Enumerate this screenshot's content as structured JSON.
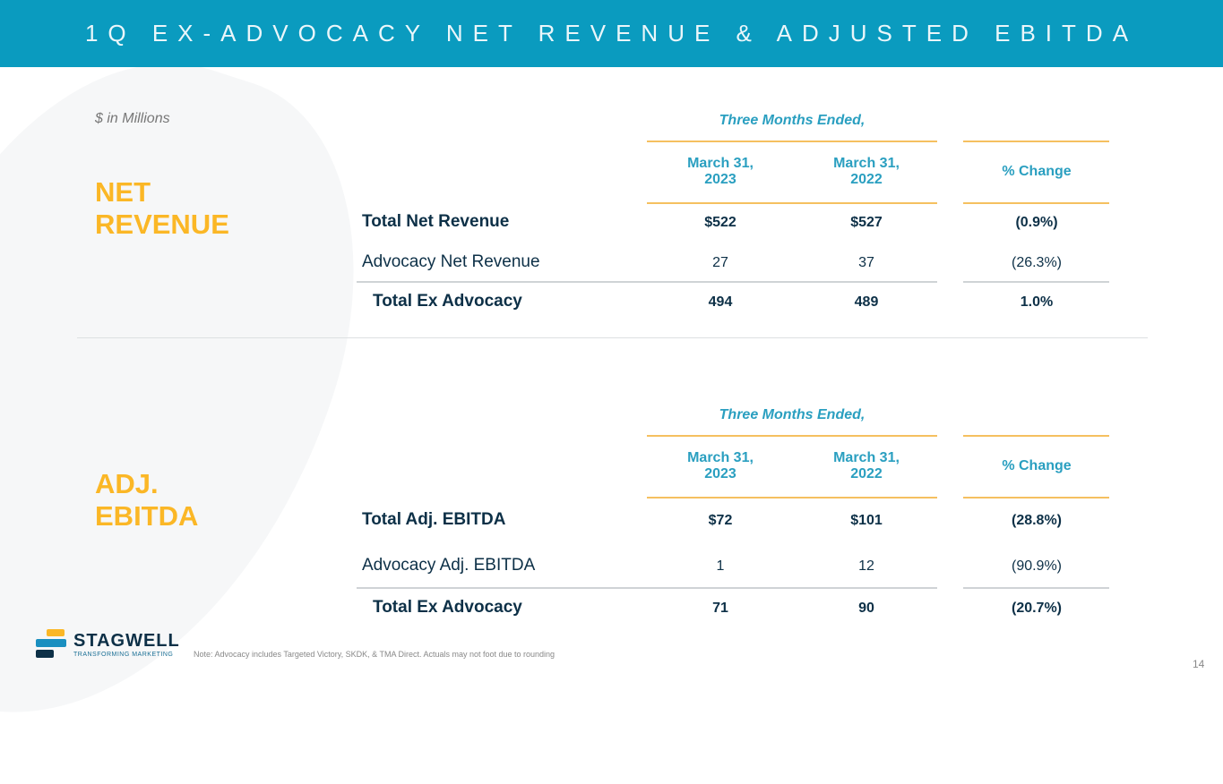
{
  "title": "1Q EX-ADVOCACY NET REVENUE & ADJUSTED EBITDA",
  "units": "$ in Millions",
  "colors": {
    "header": "#0a9bbf",
    "accent": "#fbb726",
    "navy": "#0d3047",
    "teal": "#2a9fc0"
  },
  "sections": [
    {
      "label_1": "NET",
      "label_2": "REVENUE",
      "period": "Three Months Ended,",
      "headers": [
        "March 31,\n2023",
        "March 31,\n2022",
        "% Change"
      ],
      "rows": [
        {
          "label": "Total Net Revenue",
          "values": [
            "$522",
            "$527",
            "(0.9%)"
          ],
          "bold": true
        },
        {
          "label": "Advocacy Net Revenue",
          "values": [
            "27",
            "37",
            "(26.3%)"
          ],
          "bold": false
        },
        {
          "label": "Total Ex Advocacy",
          "values": [
            "494",
            "489",
            "1.0%"
          ],
          "bold": true
        }
      ]
    },
    {
      "label_1": "ADJ.",
      "label_2": "EBITDA",
      "period": "Three Months Ended,",
      "headers": [
        "March 31,\n2023",
        "March 31,\n2022",
        "% Change"
      ],
      "rows": [
        {
          "label": "Total Adj. EBITDA",
          "values": [
            "$72",
            "$101",
            "(28.8%)"
          ],
          "bold": true
        },
        {
          "label": "Advocacy Adj. EBITDA",
          "values": [
            "1",
            "12",
            "(90.9%)"
          ],
          "bold": false
        },
        {
          "label": "Total Ex Advocacy",
          "values": [
            "71",
            "90",
            "(20.7%)"
          ],
          "bold": true
        }
      ]
    }
  ],
  "footer": {
    "logo_name": "STAGWELL",
    "logo_tagline": "TRANSFORMING MARKETING",
    "note": "Note: Advocacy includes Targeted Victory, SKDK, & TMA Direct. Actuals may not foot due to rounding",
    "page": "14"
  }
}
